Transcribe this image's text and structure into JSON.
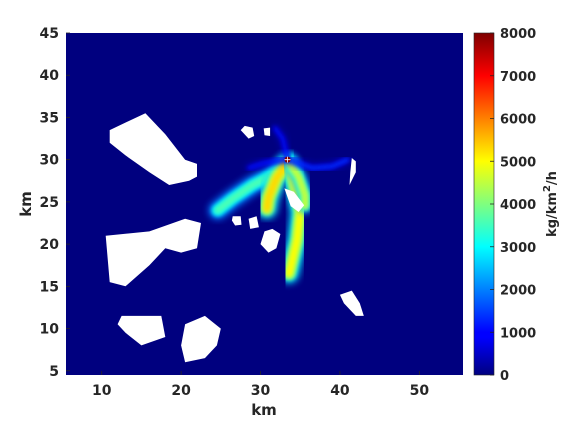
{
  "chart_data": {
    "type": "heatmap",
    "title": "",
    "xlabel": "km",
    "ylabel": "km",
    "xlim": [
      5.5,
      55.5
    ],
    "ylim": [
      4.5,
      45
    ],
    "x_ticks": [
      10,
      20,
      30,
      40,
      50
    ],
    "y_ticks": [
      5,
      10,
      15,
      20,
      25,
      30,
      35,
      40,
      45
    ],
    "x_tick_labels": [
      "10",
      "20",
      "30",
      "40",
      "50"
    ],
    "y_tick_labels": [
      "5",
      "10",
      "15",
      "20",
      "25",
      "30",
      "35",
      "40",
      "45"
    ],
    "colorbar": {
      "label": "kg/km²/h",
      "label_base": "kg/km",
      "label_sup": "2",
      "label_tail": "/h",
      "colormap": "jet",
      "range": [
        0,
        8000
      ],
      "ticks": [
        0,
        1000,
        2000,
        3000,
        4000,
        5000,
        6000,
        7000,
        8000
      ],
      "tick_labels": [
        "0",
        "1000",
        "2000",
        "3000",
        "4000",
        "5000",
        "6000",
        "7000",
        "8000"
      ]
    },
    "grid": false,
    "background_color": "#00007f",
    "nodata_color": "#ffffff",
    "source_point": {
      "x": 33.4,
      "y": 30.0
    },
    "plumes": [
      {
        "id": "northwest-lobe",
        "points": [
          [
            33.4,
            29.6
          ],
          [
            31.5,
            28.2
          ],
          [
            29.0,
            27.0
          ],
          [
            26.5,
            25.4
          ],
          [
            24.6,
            24.0
          ]
        ],
        "peak": 3600,
        "width_km": 1.6
      },
      {
        "id": "central-lobe",
        "points": [
          [
            33.4,
            29.6
          ],
          [
            32.0,
            27.8
          ],
          [
            31.0,
            25.5
          ],
          [
            30.8,
            24.2
          ]
        ],
        "peak": 5300,
        "width_km": 1.8
      },
      {
        "id": "south-lobe",
        "points": [
          [
            33.6,
            29.4
          ],
          [
            34.3,
            26.8
          ],
          [
            35.0,
            23.8
          ],
          [
            34.6,
            20.5
          ],
          [
            33.6,
            16.5
          ]
        ],
        "peak": 5000,
        "width_km": 1.7
      },
      {
        "id": "east-lobe",
        "points": [
          [
            33.6,
            29.6
          ],
          [
            34.8,
            28.0
          ],
          [
            35.6,
            25.8
          ],
          [
            35.6,
            24.5
          ]
        ],
        "peak": 4600,
        "width_km": 1.2
      },
      {
        "id": "east-streak",
        "points": [
          [
            33.6,
            30.0
          ],
          [
            36.5,
            29.0
          ],
          [
            39.0,
            29.2
          ],
          [
            41.0,
            30.0
          ]
        ],
        "peak": 1500,
        "width_km": 0.35
      },
      {
        "id": "north-streak",
        "points": [
          [
            33.4,
            30.0
          ],
          [
            32.8,
            32.5
          ],
          [
            31.8,
            33.8
          ]
        ],
        "peak": 1200,
        "width_km": 0.3
      },
      {
        "id": "west-streak",
        "points": [
          [
            33.2,
            30.0
          ],
          [
            30.5,
            29.6
          ],
          [
            28.5,
            29.0
          ]
        ],
        "peak": 1300,
        "width_km": 0.3
      },
      {
        "id": "hotspot",
        "points": [
          [
            33.4,
            29.9
          ],
          [
            33.4,
            29.6
          ]
        ],
        "peak": 7000,
        "width_km": 0.45
      }
    ],
    "nodata_regions": [
      {
        "id": "nw-polygon",
        "points": [
          [
            11.0,
            33.5
          ],
          [
            15.5,
            35.5
          ],
          [
            18.0,
            33.0
          ],
          [
            20.5,
            30.0
          ],
          [
            22.0,
            29.5
          ],
          [
            22.0,
            28.0
          ],
          [
            21.0,
            27.5
          ],
          [
            18.5,
            27.0
          ],
          [
            16.0,
            28.5
          ],
          [
            13.0,
            30.5
          ],
          [
            11.0,
            32.0
          ]
        ]
      },
      {
        "id": "west-polygon",
        "points": [
          [
            10.5,
            21.0
          ],
          [
            16.0,
            21.5
          ],
          [
            20.5,
            23.0
          ],
          [
            22.5,
            22.5
          ],
          [
            22.0,
            19.5
          ],
          [
            20.0,
            19.0
          ],
          [
            18.0,
            19.5
          ],
          [
            16.0,
            17.5
          ],
          [
            13.0,
            15.0
          ],
          [
            11.0,
            15.5
          ]
        ]
      },
      {
        "id": "sw-polygon",
        "points": [
          [
            12.5,
            11.5
          ],
          [
            15.5,
            11.5
          ],
          [
            17.5,
            11.5
          ],
          [
            18.0,
            9.0
          ],
          [
            15.0,
            8.0
          ],
          [
            13.0,
            9.5
          ],
          [
            12.0,
            10.5
          ]
        ]
      },
      {
        "id": "south-polygon",
        "points": [
          [
            20.5,
            10.5
          ],
          [
            23.0,
            11.5
          ],
          [
            25.0,
            10.0
          ],
          [
            24.5,
            8.0
          ],
          [
            23.0,
            6.5
          ],
          [
            20.5,
            6.0
          ],
          [
            20.0,
            8.0
          ]
        ]
      },
      {
        "id": "se-polygon",
        "points": [
          [
            40.0,
            14.0
          ],
          [
            41.5,
            14.5
          ],
          [
            42.5,
            13.0
          ],
          [
            43.0,
            11.5
          ],
          [
            42.0,
            11.5
          ],
          [
            40.5,
            13.0
          ]
        ]
      },
      {
        "id": "islet-a",
        "points": [
          [
            28.0,
            34.0
          ],
          [
            29.0,
            33.8
          ],
          [
            29.2,
            32.8
          ],
          [
            28.5,
            32.5
          ],
          [
            27.5,
            33.5
          ]
        ]
      },
      {
        "id": "islet-b",
        "points": [
          [
            30.4,
            33.7
          ],
          [
            31.2,
            33.8
          ],
          [
            31.2,
            32.8
          ],
          [
            30.5,
            32.9
          ]
        ]
      },
      {
        "id": "islet-c",
        "points": [
          [
            26.5,
            23.3
          ],
          [
            27.5,
            23.3
          ],
          [
            27.6,
            22.3
          ],
          [
            26.8,
            22.2
          ],
          [
            26.4,
            22.8
          ]
        ]
      },
      {
        "id": "islet-d",
        "points": [
          [
            28.5,
            23.0
          ],
          [
            29.5,
            23.3
          ],
          [
            29.8,
            22.0
          ],
          [
            28.7,
            21.8
          ]
        ]
      },
      {
        "id": "islet-e",
        "points": [
          [
            30.5,
            21.5
          ],
          [
            31.5,
            21.8
          ],
          [
            32.5,
            21.2
          ],
          [
            32.0,
            19.5
          ],
          [
            31.0,
            19.0
          ],
          [
            30.0,
            20.0
          ]
        ]
      },
      {
        "id": "streak-island",
        "points": [
          [
            33.0,
            26.6
          ],
          [
            34.2,
            26.2
          ],
          [
            35.5,
            24.6
          ],
          [
            34.8,
            23.8
          ],
          [
            33.8,
            24.5
          ]
        ]
      },
      {
        "id": "east-sliver",
        "points": [
          [
            41.5,
            30.2
          ],
          [
            42.0,
            29.8
          ],
          [
            42.0,
            28.5
          ],
          [
            41.2,
            27.0
          ],
          [
            41.3,
            28.5
          ]
        ]
      }
    ]
  }
}
